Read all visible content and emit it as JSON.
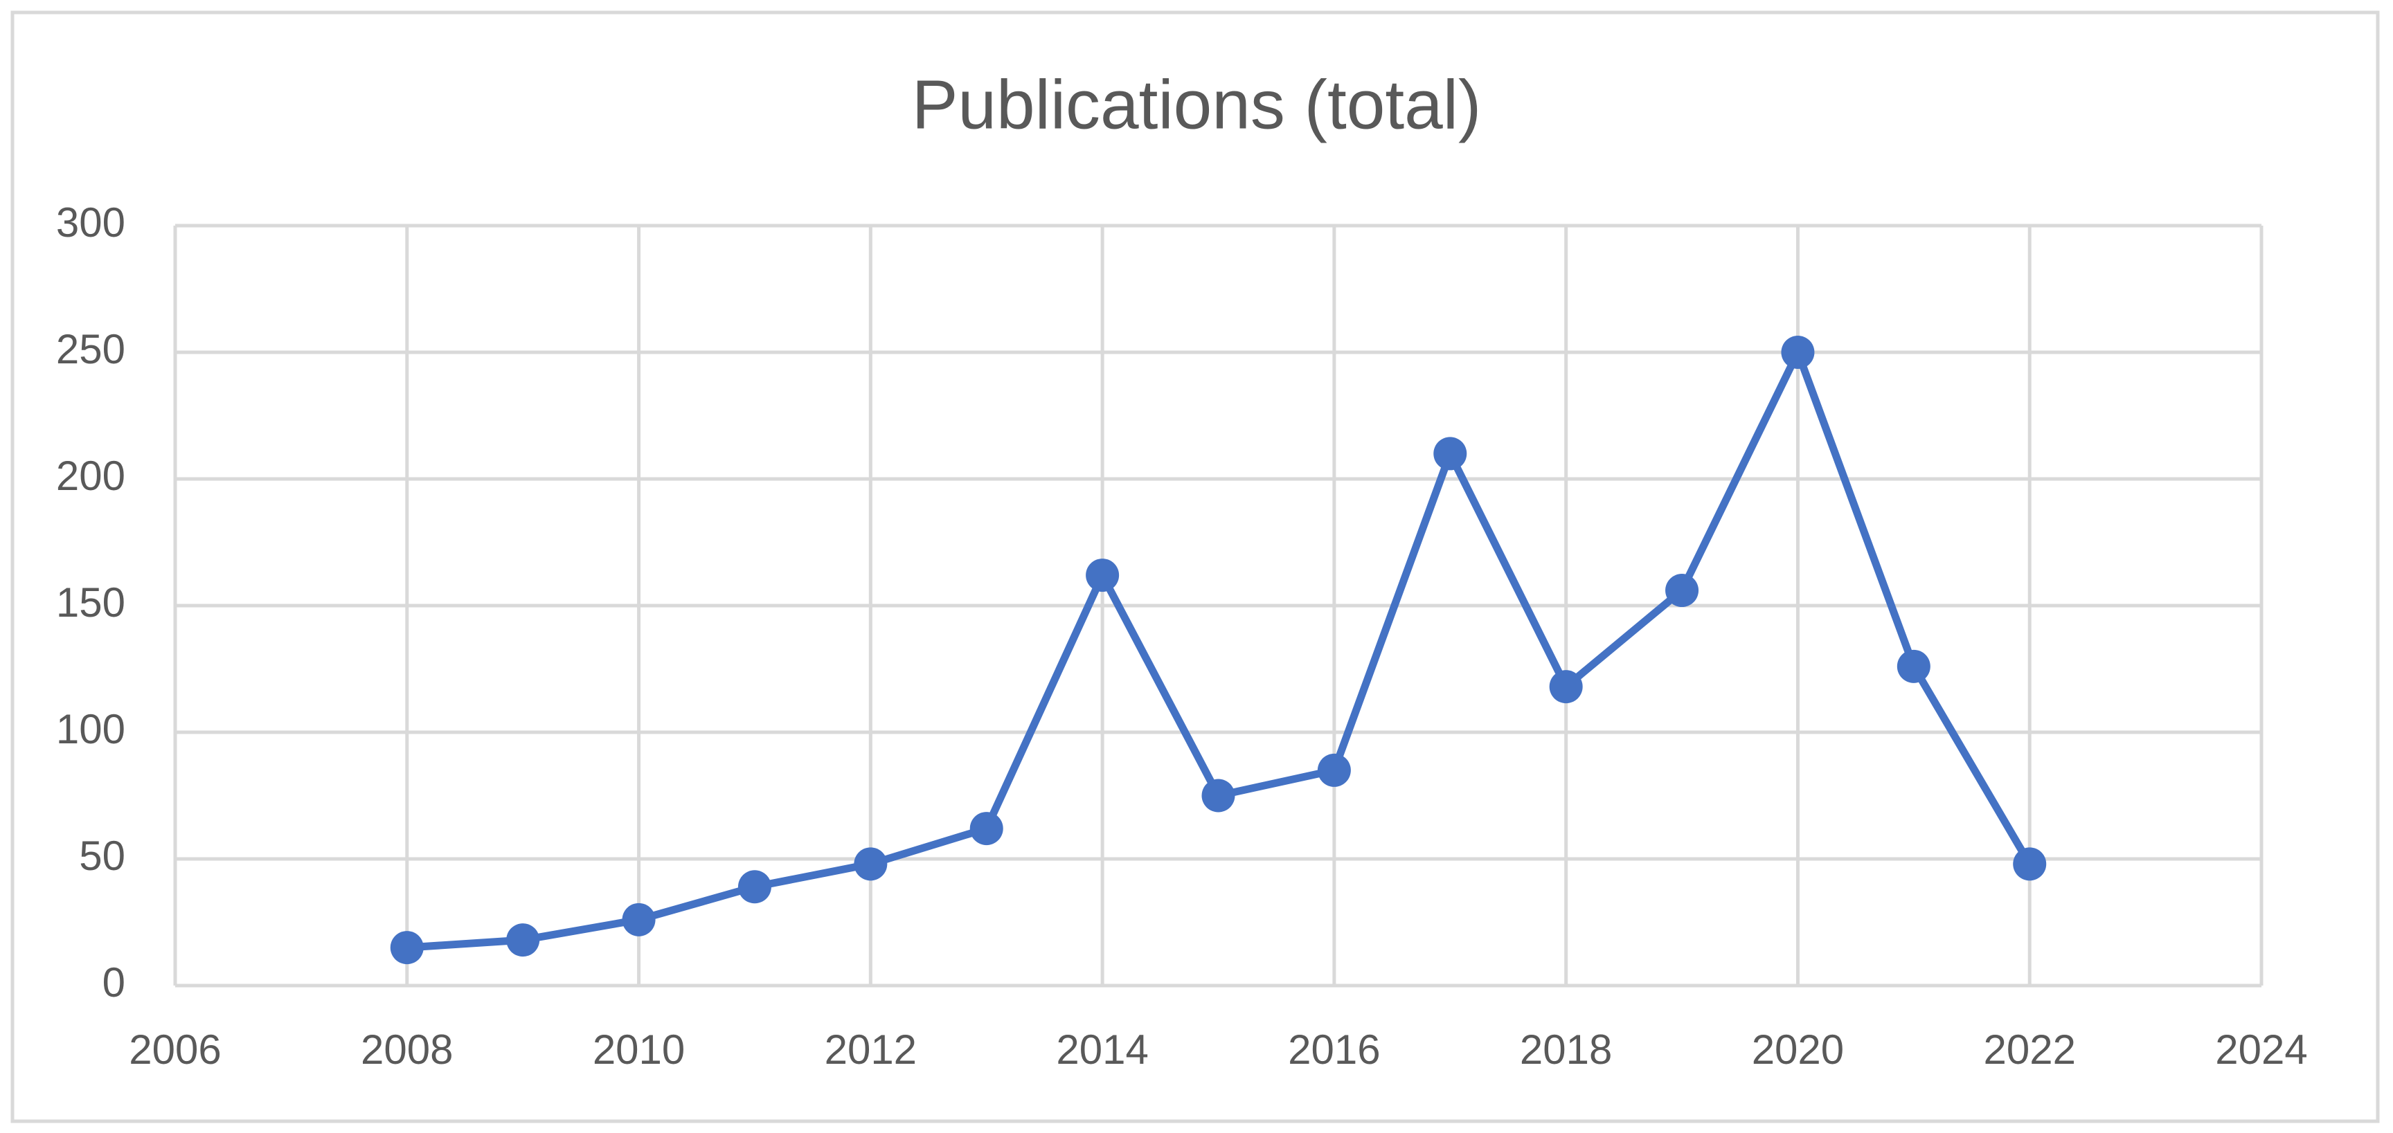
{
  "chart_data": {
    "type": "line",
    "title": "Publications (total)",
    "x": [
      2008,
      2009,
      2010,
      2011,
      2012,
      2013,
      2014,
      2015,
      2016,
      2017,
      2018,
      2019,
      2020,
      2021,
      2022
    ],
    "values": [
      15,
      18,
      26,
      39,
      48,
      62,
      162,
      75,
      85,
      210,
      118,
      156,
      250,
      126,
      48
    ],
    "color": "#4472c4",
    "xlim": [
      2006,
      2024
    ],
    "xticks": [
      2006,
      2008,
      2010,
      2012,
      2014,
      2016,
      2018,
      2020,
      2022,
      2024
    ],
    "ylim": [
      0,
      300
    ],
    "yticks": [
      0,
      50,
      100,
      150,
      200,
      250,
      300
    ],
    "grid": true,
    "markers": true
  }
}
